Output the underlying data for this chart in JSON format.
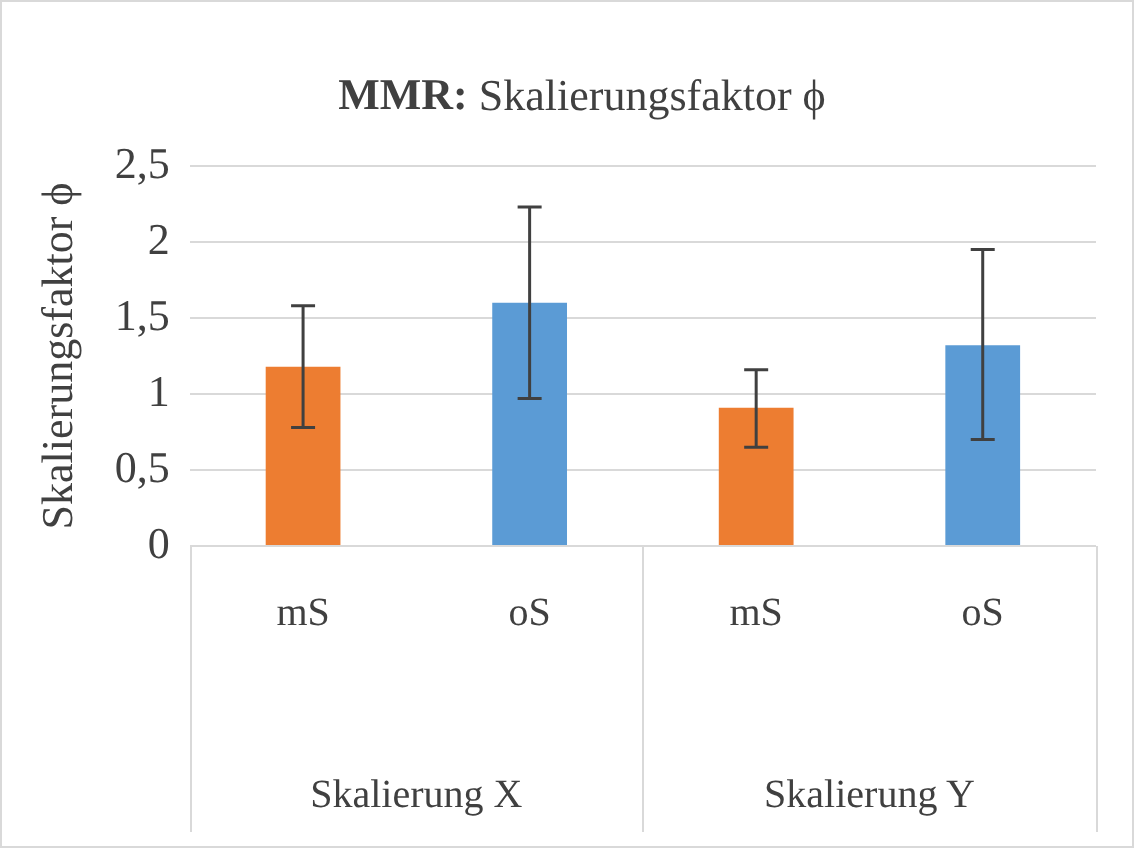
{
  "chart_data": {
    "type": "bar",
    "title": "MMR: Skalierungsfaktor ϕ",
    "ylabel": "Skalierungsfaktor ϕ",
    "categories": [
      "mS",
      "oS",
      "mS",
      "oS"
    ],
    "values": [
      1.18,
      1.6,
      0.91,
      1.32
    ],
    "colors": [
      "#ed7d31",
      "#5b9bd5",
      "#ed7d31",
      "#5b9bd5"
    ],
    "errors": [
      [
        0.78,
        1.58
      ],
      [
        0.97,
        2.23
      ],
      [
        0.65,
        1.16
      ],
      [
        0.7,
        1.95
      ]
    ],
    "annotations": [
      "Skalierung X",
      "Skalierung Y"
    ],
    "ylim": [
      0,
      2.5
    ],
    "yticks": [
      0,
      {
        "value": 0.5,
        "label": "0,5"
      },
      1,
      {
        "value": 1.5,
        "label": "1,5"
      },
      2,
      {
        "value": 2.5,
        "label": "2,5"
      }
    ],
    "grid": "y",
    "legend": false
  }
}
